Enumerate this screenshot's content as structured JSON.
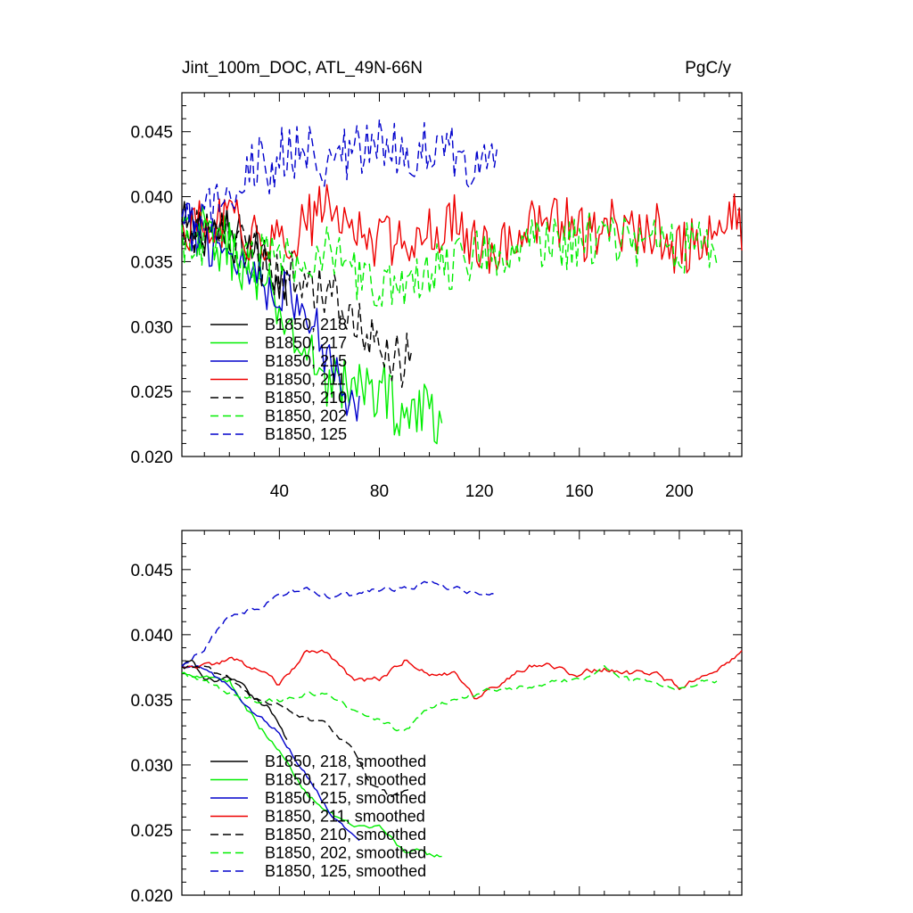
{
  "chart_data": [
    {
      "type": "line",
      "title": "Jint_100m_DOC, ATL_49N-66N",
      "units": "PgC/y",
      "xlim": [
        1,
        225
      ],
      "ylim": [
        0.02,
        0.048
      ],
      "xticks": [
        40,
        80,
        120,
        160,
        200
      ],
      "xtick_labels": [
        "40",
        "80",
        "120",
        "160",
        "200"
      ],
      "yticks": [
        0.02,
        0.025,
        0.03,
        0.035,
        0.04,
        0.045
      ],
      "ytick_labels": [
        "0.020",
        "0.025",
        "0.030",
        "0.035",
        "0.040",
        "0.045"
      ],
      "series": [
        {
          "name": "B1850, 218",
          "color": "#000000",
          "dash": "solid",
          "noise": 0.0022,
          "anchors": [
            [
              1,
              0.0375
            ],
            [
              10,
              0.0375
            ],
            [
              20,
              0.037
            ],
            [
              30,
              0.036
            ],
            [
              40,
              0.034
            ],
            [
              43,
              0.033
            ]
          ]
        },
        {
          "name": "B1850, 217",
          "color": "#00ee00",
          "dash": "solid",
          "noise": 0.0024,
          "anchors": [
            [
              1,
              0.037
            ],
            [
              10,
              0.037
            ],
            [
              20,
              0.036
            ],
            [
              30,
              0.034
            ],
            [
              40,
              0.031
            ],
            [
              50,
              0.028
            ],
            [
              60,
              0.026
            ],
            [
              70,
              0.025
            ],
            [
              80,
              0.0255
            ],
            [
              90,
              0.023
            ],
            [
              100,
              0.0235
            ],
            [
              105,
              0.023
            ]
          ]
        },
        {
          "name": "B1850, 215",
          "color": "#0000cc",
          "dash": "solid",
          "noise": 0.0022,
          "anchors": [
            [
              1,
              0.0375
            ],
            [
              10,
              0.037
            ],
            [
              20,
              0.036
            ],
            [
              30,
              0.034
            ],
            [
              40,
              0.033
            ],
            [
              50,
              0.031
            ],
            [
              60,
              0.028
            ],
            [
              70,
              0.024
            ],
            [
              72,
              0.023
            ]
          ]
        },
        {
          "name": "B1850, 211",
          "color": "#ee0000",
          "dash": "solid",
          "noise": 0.0022,
          "anchors": [
            [
              1,
              0.0375
            ],
            [
              10,
              0.0375
            ],
            [
              20,
              0.038
            ],
            [
              30,
              0.037
            ],
            [
              40,
              0.036
            ],
            [
              50,
              0.038
            ],
            [
              60,
              0.039
            ],
            [
              70,
              0.0375
            ],
            [
              80,
              0.0365
            ],
            [
              90,
              0.037
            ],
            [
              100,
              0.0375
            ],
            [
              110,
              0.038
            ],
            [
              120,
              0.036
            ],
            [
              130,
              0.0365
            ],
            [
              140,
              0.0375
            ],
            [
              150,
              0.0385
            ],
            [
              160,
              0.037
            ],
            [
              170,
              0.038
            ],
            [
              180,
              0.037
            ],
            [
              190,
              0.0375
            ],
            [
              200,
              0.036
            ],
            [
              210,
              0.0365
            ],
            [
              220,
              0.038
            ],
            [
              225,
              0.038
            ]
          ]
        },
        {
          "name": "B1850, 210",
          "color": "#000000",
          "dash": "dashed",
          "noise": 0.0022,
          "anchors": [
            [
              1,
              0.0375
            ],
            [
              10,
              0.0375
            ],
            [
              20,
              0.0365
            ],
            [
              30,
              0.035
            ],
            [
              40,
              0.034
            ],
            [
              50,
              0.034
            ],
            [
              60,
              0.033
            ],
            [
              70,
              0.031
            ],
            [
              80,
              0.028
            ],
            [
              90,
              0.027
            ],
            [
              93,
              0.028
            ]
          ]
        },
        {
          "name": "B1850, 202",
          "color": "#00ee00",
          "dash": "dashed",
          "noise": 0.0022,
          "anchors": [
            [
              1,
              0.037
            ],
            [
              10,
              0.0365
            ],
            [
              20,
              0.036
            ],
            [
              30,
              0.035
            ],
            [
              40,
              0.035
            ],
            [
              50,
              0.035
            ],
            [
              60,
              0.036
            ],
            [
              70,
              0.034
            ],
            [
              80,
              0.0335
            ],
            [
              90,
              0.0325
            ],
            [
              100,
              0.034
            ],
            [
              110,
              0.035
            ],
            [
              120,
              0.036
            ],
            [
              130,
              0.036
            ],
            [
              140,
              0.0365
            ],
            [
              150,
              0.0365
            ],
            [
              160,
              0.0365
            ],
            [
              170,
              0.037
            ],
            [
              180,
              0.0365
            ],
            [
              190,
              0.037
            ],
            [
              200,
              0.036
            ],
            [
              210,
              0.0365
            ],
            [
              215,
              0.0365
            ]
          ]
        },
        {
          "name": "B1850, 125",
          "color": "#0000cc",
          "dash": "dashed",
          "noise": 0.0024,
          "anchors": [
            [
              1,
              0.0375
            ],
            [
              10,
              0.038
            ],
            [
              20,
              0.041
            ],
            [
              30,
              0.042
            ],
            [
              40,
              0.043
            ],
            [
              50,
              0.0435
            ],
            [
              60,
              0.043
            ],
            [
              70,
              0.043
            ],
            [
              80,
              0.044
            ],
            [
              90,
              0.0435
            ],
            [
              100,
              0.044
            ],
            [
              110,
              0.043
            ],
            [
              120,
              0.043
            ],
            [
              127,
              0.0435
            ]
          ]
        }
      ]
    },
    {
      "type": "line",
      "xlim": [
        1,
        225
      ],
      "ylim": [
        0.02,
        0.048
      ],
      "xticks": [
        40,
        80,
        120,
        160,
        200
      ],
      "yticks": [
        0.02,
        0.025,
        0.03,
        0.035,
        0.04,
        0.045
      ],
      "ytick_labels": [
        "0.020",
        "0.025",
        "0.030",
        "0.035",
        "0.040",
        "0.045"
      ],
      "series": [
        {
          "name": "B1850, 218, smoothed",
          "color": "#000000",
          "dash": "solid",
          "noise": 0.0005,
          "anchors": [
            [
              1,
              0.0375
            ],
            [
              5,
              0.038
            ],
            [
              10,
              0.0365
            ],
            [
              20,
              0.0365
            ],
            [
              25,
              0.036
            ],
            [
              30,
              0.035
            ],
            [
              35,
              0.0345
            ],
            [
              40,
              0.033
            ],
            [
              43,
              0.032
            ]
          ]
        },
        {
          "name": "B1850, 217, smoothed",
          "color": "#00ee00",
          "dash": "solid",
          "noise": 0.0006,
          "anchors": [
            [
              1,
              0.037
            ],
            [
              10,
              0.037
            ],
            [
              20,
              0.0365
            ],
            [
              30,
              0.0335
            ],
            [
              40,
              0.031
            ],
            [
              50,
              0.028
            ],
            [
              60,
              0.0265
            ],
            [
              70,
              0.025
            ],
            [
              80,
              0.025
            ],
            [
              90,
              0.0235
            ],
            [
              100,
              0.023
            ],
            [
              105,
              0.023
            ]
          ]
        },
        {
          "name": "B1850, 215, smoothed",
          "color": "#0000cc",
          "dash": "solid",
          "noise": 0.0005,
          "anchors": [
            [
              1,
              0.0375
            ],
            [
              10,
              0.0375
            ],
            [
              20,
              0.036
            ],
            [
              30,
              0.034
            ],
            [
              40,
              0.0325
            ],
            [
              50,
              0.0295
            ],
            [
              60,
              0.0265
            ],
            [
              70,
              0.0245
            ],
            [
              72,
              0.024
            ]
          ]
        },
        {
          "name": "B1850, 211, smoothed",
          "color": "#ee0000",
          "dash": "solid",
          "noise": 0.0006,
          "anchors": [
            [
              1,
              0.0375
            ],
            [
              10,
              0.0375
            ],
            [
              20,
              0.038
            ],
            [
              30,
              0.0375
            ],
            [
              40,
              0.036
            ],
            [
              50,
              0.0385
            ],
            [
              60,
              0.0385
            ],
            [
              70,
              0.0365
            ],
            [
              80,
              0.0365
            ],
            [
              90,
              0.038
            ],
            [
              100,
              0.037
            ],
            [
              110,
              0.037
            ],
            [
              118,
              0.035
            ],
            [
              125,
              0.036
            ],
            [
              140,
              0.0375
            ],
            [
              150,
              0.0375
            ],
            [
              160,
              0.037
            ],
            [
              170,
              0.0375
            ],
            [
              180,
              0.037
            ],
            [
              190,
              0.037
            ],
            [
              200,
              0.036
            ],
            [
              210,
              0.037
            ],
            [
              220,
              0.038
            ],
            [
              225,
              0.0385
            ]
          ]
        },
        {
          "name": "B1850, 210, smoothed",
          "color": "#000000",
          "dash": "dashed",
          "noise": 0.0005,
          "anchors": [
            [
              1,
              0.0375
            ],
            [
              10,
              0.0375
            ],
            [
              20,
              0.0365
            ],
            [
              30,
              0.035
            ],
            [
              40,
              0.0345
            ],
            [
              50,
              0.0335
            ],
            [
              60,
              0.033
            ],
            [
              70,
              0.031
            ],
            [
              75,
              0.029
            ],
            [
              85,
              0.0275
            ],
            [
              93,
              0.028
            ]
          ]
        },
        {
          "name": "B1850, 202, smoothed",
          "color": "#00ee00",
          "dash": "dashed",
          "noise": 0.0005,
          "anchors": [
            [
              1,
              0.037
            ],
            [
              10,
              0.0365
            ],
            [
              20,
              0.0355
            ],
            [
              30,
              0.035
            ],
            [
              40,
              0.035
            ],
            [
              50,
              0.0355
            ],
            [
              60,
              0.0355
            ],
            [
              70,
              0.034
            ],
            [
              80,
              0.0335
            ],
            [
              90,
              0.0325
            ],
            [
              100,
              0.0345
            ],
            [
              110,
              0.035
            ],
            [
              120,
              0.0355
            ],
            [
              130,
              0.036
            ],
            [
              140,
              0.036
            ],
            [
              150,
              0.0365
            ],
            [
              160,
              0.0365
            ],
            [
              170,
              0.0375
            ],
            [
              180,
              0.0365
            ],
            [
              190,
              0.0365
            ],
            [
              200,
              0.036
            ],
            [
              210,
              0.0365
            ],
            [
              215,
              0.0365
            ]
          ]
        },
        {
          "name": "B1850, 125, smoothed",
          "color": "#0000cc",
          "dash": "dashed",
          "noise": 0.0006,
          "anchors": [
            [
              1,
              0.0375
            ],
            [
              10,
              0.039
            ],
            [
              20,
              0.0415
            ],
            [
              30,
              0.042
            ],
            [
              40,
              0.043
            ],
            [
              50,
              0.0435
            ],
            [
              60,
              0.043
            ],
            [
              70,
              0.043
            ],
            [
              80,
              0.0435
            ],
            [
              90,
              0.0435
            ],
            [
              100,
              0.044
            ],
            [
              110,
              0.0435
            ],
            [
              120,
              0.043
            ],
            [
              127,
              0.0435
            ]
          ]
        }
      ]
    }
  ]
}
